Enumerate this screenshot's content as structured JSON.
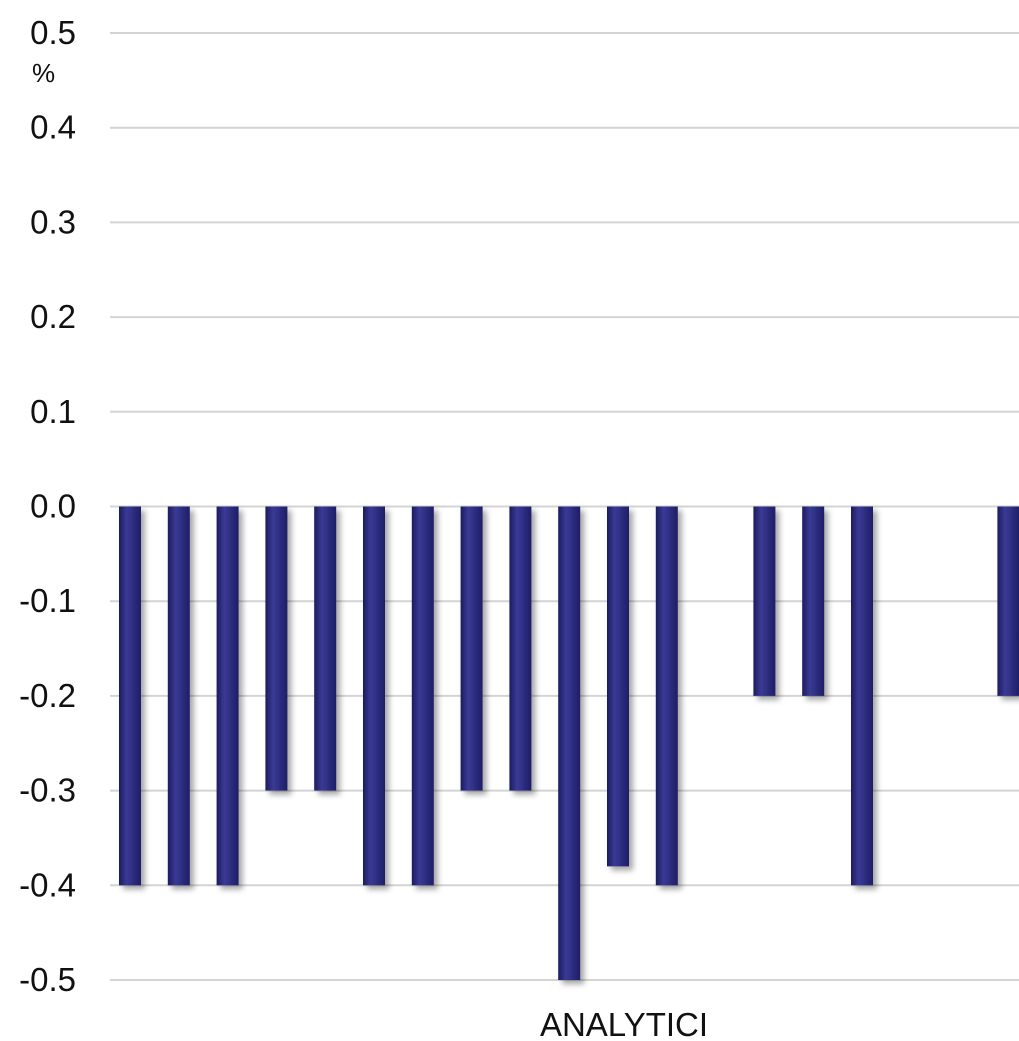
{
  "chart_data": {
    "type": "bar",
    "unit_label": "%",
    "xlabel": "ANALYTICI",
    "ylim": [
      -0.5,
      0.5
    ],
    "y_ticks": [
      "0.5",
      "0.4",
      "0.3",
      "0.2",
      "0.1",
      "0.0",
      "-0.1",
      "-0.2",
      "-0.3",
      "-0.4",
      "-0.5"
    ],
    "grid": true,
    "bar_color": "#2a2a7c",
    "values": [
      -0.4,
      -0.4,
      -0.4,
      -0.3,
      -0.3,
      -0.4,
      -0.4,
      -0.3,
      -0.3,
      -0.5,
      -0.38,
      -0.4,
      0.0,
      -0.2,
      -0.2,
      -0.4,
      0.0,
      0.0,
      -0.2
    ]
  }
}
